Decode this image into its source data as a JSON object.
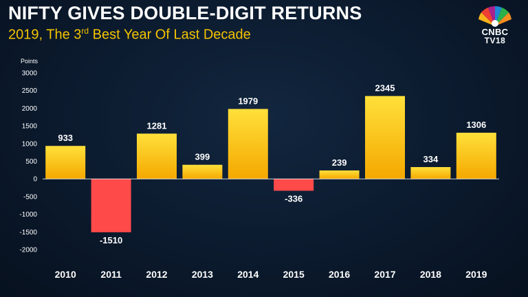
{
  "header": {
    "title": "NIFTY GIVES DOUBLE-DIGIT RETURNS",
    "subtitle_pre": "2019, The 3",
    "subtitle_sup": "rd",
    "subtitle_post": " Best Year Of Last Decade"
  },
  "logo": {
    "brand": "CNBC",
    "sub": "TV18",
    "icon": "peacock-icon"
  },
  "colors": {
    "positive_top": "#ffe03a",
    "positive_bottom": "#f4a800",
    "negative": "#ff4a4a",
    "subtitle": "#f5c400"
  },
  "chart_data": {
    "type": "bar",
    "ylabel": "Points",
    "ylim": [
      -2000,
      3000
    ],
    "yticks": [
      "3000",
      "2500",
      "2000",
      "1500",
      "1000",
      "500",
      "0",
      "-500",
      "-1000",
      "-1500",
      "-2000"
    ],
    "grid": false,
    "categories": [
      "2010",
      "2011",
      "2012",
      "2013",
      "2014",
      "2015",
      "2016",
      "2017",
      "2018",
      "2019"
    ],
    "values": [
      933,
      -1510,
      1281,
      399,
      1979,
      -336,
      239,
      2345,
      334,
      1306
    ],
    "data_labels": [
      "933",
      "-1510",
      "1281",
      "399",
      "1979",
      "-336",
      "239",
      "2345",
      "334",
      "1306"
    ]
  }
}
